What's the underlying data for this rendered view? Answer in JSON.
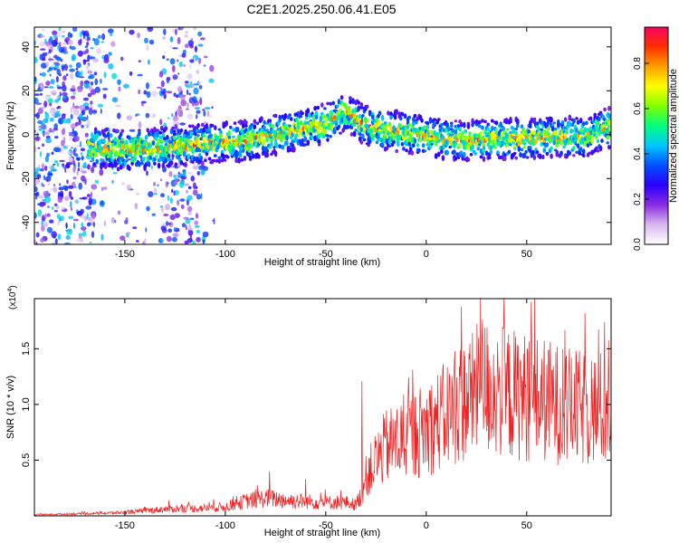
{
  "title": "C2E1.2025.250.06.41.E05",
  "colors": {
    "snr_line": "#ee2222",
    "axis": "#000000"
  },
  "chart_data": [
    {
      "type": "heatmap",
      "xlabel": "Height of straight line (km)",
      "ylabel": "Frequency (Hz)",
      "xlim": [
        -195,
        92
      ],
      "ylim": [
        -50,
        49
      ],
      "xticks": [
        -150,
        -100,
        -50,
        0,
        50
      ],
      "yticks": [
        -40,
        -20,
        0,
        20,
        40
      ],
      "colorbar": {
        "label": "Normalized spectral amplitude",
        "range": [
          0,
          0.96
        ],
        "ticks": [
          "0.0",
          "0.2",
          "0.4",
          "0.6",
          "0.8"
        ],
        "colormap": [
          "#ffffff",
          "#d8b8f0",
          "#8a2be2",
          "#2a00ff",
          "#0050ff",
          "#00c8ff",
          "#00ff80",
          "#80ff00",
          "#ffff00",
          "#ffa000",
          "#ff3000",
          "#ff0060"
        ]
      },
      "ridge": {
        "x": [
          -165,
          -150,
          -130,
          -110,
          -90,
          -80,
          -70,
          -60,
          -50,
          -45,
          -40,
          -35,
          -30,
          -20,
          -10,
          0,
          10,
          20,
          30,
          40,
          50,
          60,
          70,
          80,
          90
        ],
        "freq": [
          -6,
          -7,
          -6,
          -4,
          -3,
          -1,
          1,
          3,
          5,
          8,
          11,
          7,
          4,
          2,
          1,
          -1,
          -2,
          -3,
          -2,
          -2,
          -2,
          -1,
          -1,
          -1,
          3
        ]
      }
    },
    {
      "type": "line",
      "xlabel": "Height of straight line (km)",
      "ylabel": "SNR (10 * v/v)",
      "y_multiplier": "(x10",
      "y_multiplier_exp": "4",
      "y_multiplier_close": ")",
      "xlim": [
        -195,
        92
      ],
      "ylim": [
        0,
        1.95
      ],
      "xticks": [
        -150,
        -100,
        -50,
        0,
        50
      ],
      "yticks": [
        "0.5",
        "1.0",
        "1.5"
      ],
      "series": [
        {
          "x": [
            -195,
            -170,
            -150,
            -130,
            -110,
            -100,
            -90,
            -80,
            -70,
            -60,
            -50,
            -40,
            -35,
            -32,
            -30,
            -25,
            -20,
            -10,
            0,
            10,
            20,
            25,
            27,
            30,
            40,
            50,
            60,
            70,
            80,
            92
          ],
          "base": [
            0.01,
            0.02,
            0.03,
            0.06,
            0.07,
            0.08,
            0.13,
            0.16,
            0.14,
            0.13,
            0.12,
            0.12,
            0.1,
            0.2,
            0.35,
            0.5,
            0.62,
            0.7,
            0.78,
            0.9,
            1.05,
            1.1,
            1.2,
            1.15,
            1.1,
            1.07,
            1.03,
            0.98,
            0.95,
            0.97
          ],
          "peaks": [
            [
              -32,
              1.21
            ],
            [
              27,
              1.95
            ],
            [
              26,
              1.6
            ],
            [
              -128,
              0.14
            ],
            [
              -78,
              0.4
            ],
            [
              -60,
              0.33
            ]
          ]
        }
      ]
    }
  ],
  "x_tick_labels": [
    "-150",
    "-100",
    "-50",
    "0",
    "50"
  ],
  "y_tick_labels_top": [
    "-40",
    "-20",
    "0",
    "20",
    "40"
  ]
}
